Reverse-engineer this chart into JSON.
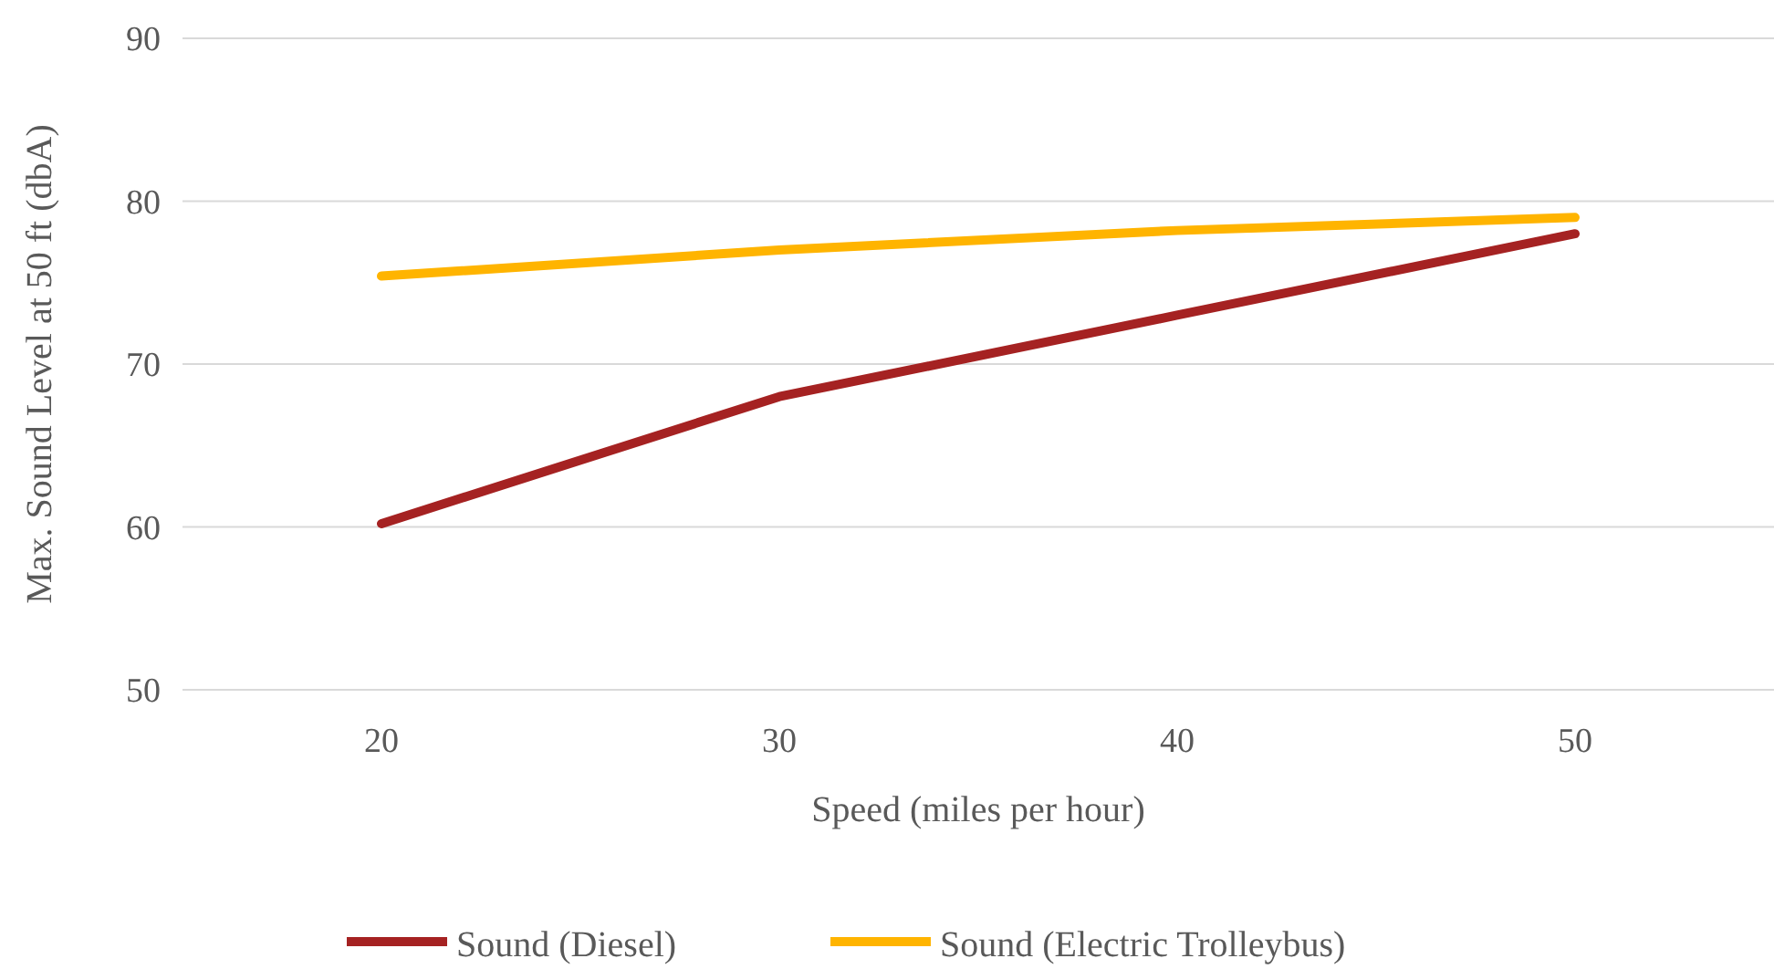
{
  "chart_data": {
    "type": "line",
    "xlabel": "Speed (miles per hour)",
    "ylabel": "Max. Sound Level at 50 ft (dbA)",
    "categories": [
      "20",
      "30",
      "40",
      "50"
    ],
    "series": [
      {
        "name": "Sound (Diesel)",
        "color": "#a52222",
        "values": [
          60.2,
          68,
          73,
          78
        ]
      },
      {
        "name": "Sound (Electric Trolleybus)",
        "color": "#ffb400",
        "values": [
          75.4,
          77,
          78.2,
          79
        ]
      }
    ],
    "ylim": [
      50,
      90
    ],
    "yticks": [
      50,
      60,
      70,
      80,
      90
    ],
    "grid": "y",
    "legend": "bottom",
    "marker": "none",
    "line_style": "solid"
  }
}
